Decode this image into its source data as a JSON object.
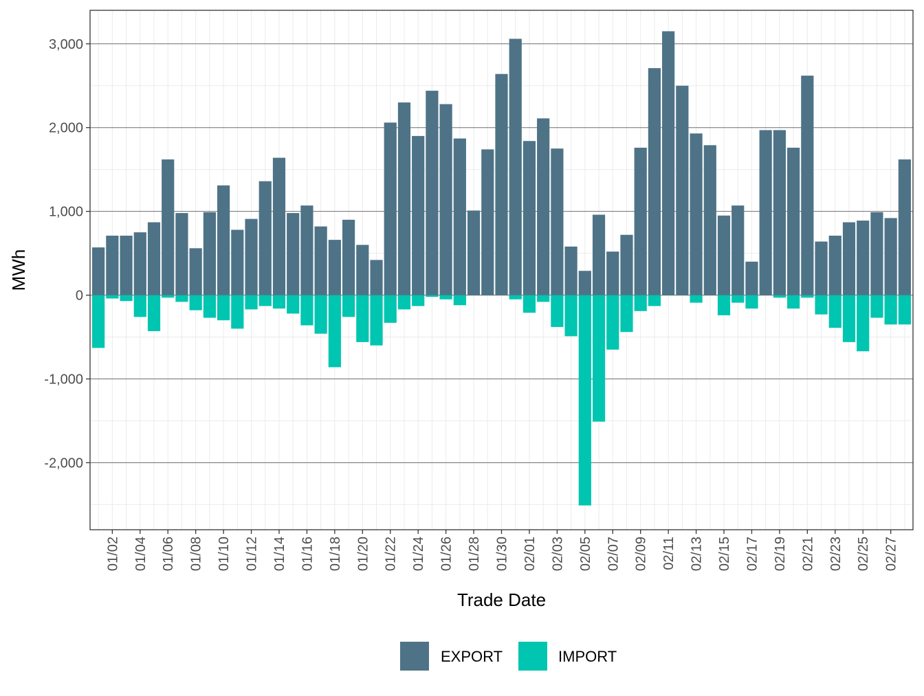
{
  "chart_data": {
    "type": "bar",
    "stacked": true,
    "xlabel": "Trade Date",
    "ylabel": "MWh",
    "ylim": [
      -2800,
      3400
    ],
    "y_ticks": [
      "3,000",
      "2,000",
      "1,000",
      "0",
      "-1,000",
      "-2,000"
    ],
    "y_tick_values": [
      3000,
      2000,
      1000,
      0,
      -1000,
      -2000
    ],
    "grid": true,
    "legend_position": "bottom",
    "colors": {
      "EXPORT": "#4e7387",
      "IMPORT": "#00c5b0"
    },
    "categories": [
      "01/01",
      "01/02",
      "01/03",
      "01/04",
      "01/05",
      "01/06",
      "01/07",
      "01/08",
      "01/09",
      "01/10",
      "01/11",
      "01/12",
      "01/13",
      "01/14",
      "01/15",
      "01/16",
      "01/17",
      "01/18",
      "01/19",
      "01/20",
      "01/21",
      "01/22",
      "01/23",
      "01/24",
      "01/25",
      "01/26",
      "01/27",
      "01/28",
      "01/29",
      "01/30",
      "01/31",
      "02/01",
      "02/02",
      "02/03",
      "02/04",
      "02/05",
      "02/06",
      "02/07",
      "02/08",
      "02/09",
      "02/10",
      "02/11",
      "02/12",
      "02/13",
      "02/14",
      "02/15",
      "02/16",
      "02/17",
      "02/18",
      "02/19",
      "02/20",
      "02/21",
      "02/22",
      "02/23",
      "02/24",
      "02/25",
      "02/26",
      "02/27",
      "02/28"
    ],
    "x_tick_labels": [
      "01/02",
      "01/04",
      "01/06",
      "01/08",
      "01/10",
      "01/12",
      "01/14",
      "01/16",
      "01/18",
      "01/20",
      "01/22",
      "01/24",
      "01/26",
      "01/28",
      "01/30",
      "02/01",
      "02/03",
      "02/05",
      "02/07",
      "02/09",
      "02/11",
      "02/13",
      "02/15",
      "02/17",
      "02/19",
      "02/21",
      "02/23",
      "02/25",
      "02/27"
    ],
    "series": [
      {
        "name": "EXPORT",
        "values": [
          570,
          710,
          710,
          750,
          870,
          1620,
          980,
          560,
          990,
          1310,
          780,
          910,
          1360,
          1640,
          980,
          1070,
          820,
          660,
          900,
          600,
          420,
          2060,
          2300,
          1900,
          2440,
          2280,
          1870,
          1010,
          1740,
          2640,
          3060,
          1840,
          2110,
          1750,
          580,
          290,
          960,
          520,
          720,
          1760,
          2710,
          3150,
          2500,
          1930,
          1790,
          950,
          1070,
          400,
          1970,
          1970,
          1760,
          2620,
          640,
          710,
          870,
          890,
          990,
          920,
          1620
        ]
      },
      {
        "name": "IMPORT",
        "values": [
          -630,
          -40,
          -70,
          -260,
          -430,
          -30,
          -80,
          -180,
          -270,
          -300,
          -400,
          -170,
          -130,
          -160,
          -220,
          -360,
          -460,
          -860,
          -260,
          -560,
          -600,
          -330,
          -170,
          -130,
          -20,
          -50,
          -120,
          0,
          0,
          0,
          -50,
          -210,
          -80,
          -380,
          -490,
          -2510,
          -1510,
          -650,
          -440,
          -190,
          -130,
          0,
          0,
          -90,
          0,
          -240,
          -90,
          -160,
          0,
          -30,
          -160,
          -30,
          -230,
          -390,
          -560,
          -670,
          -270,
          -350,
          -350
        ]
      }
    ]
  }
}
